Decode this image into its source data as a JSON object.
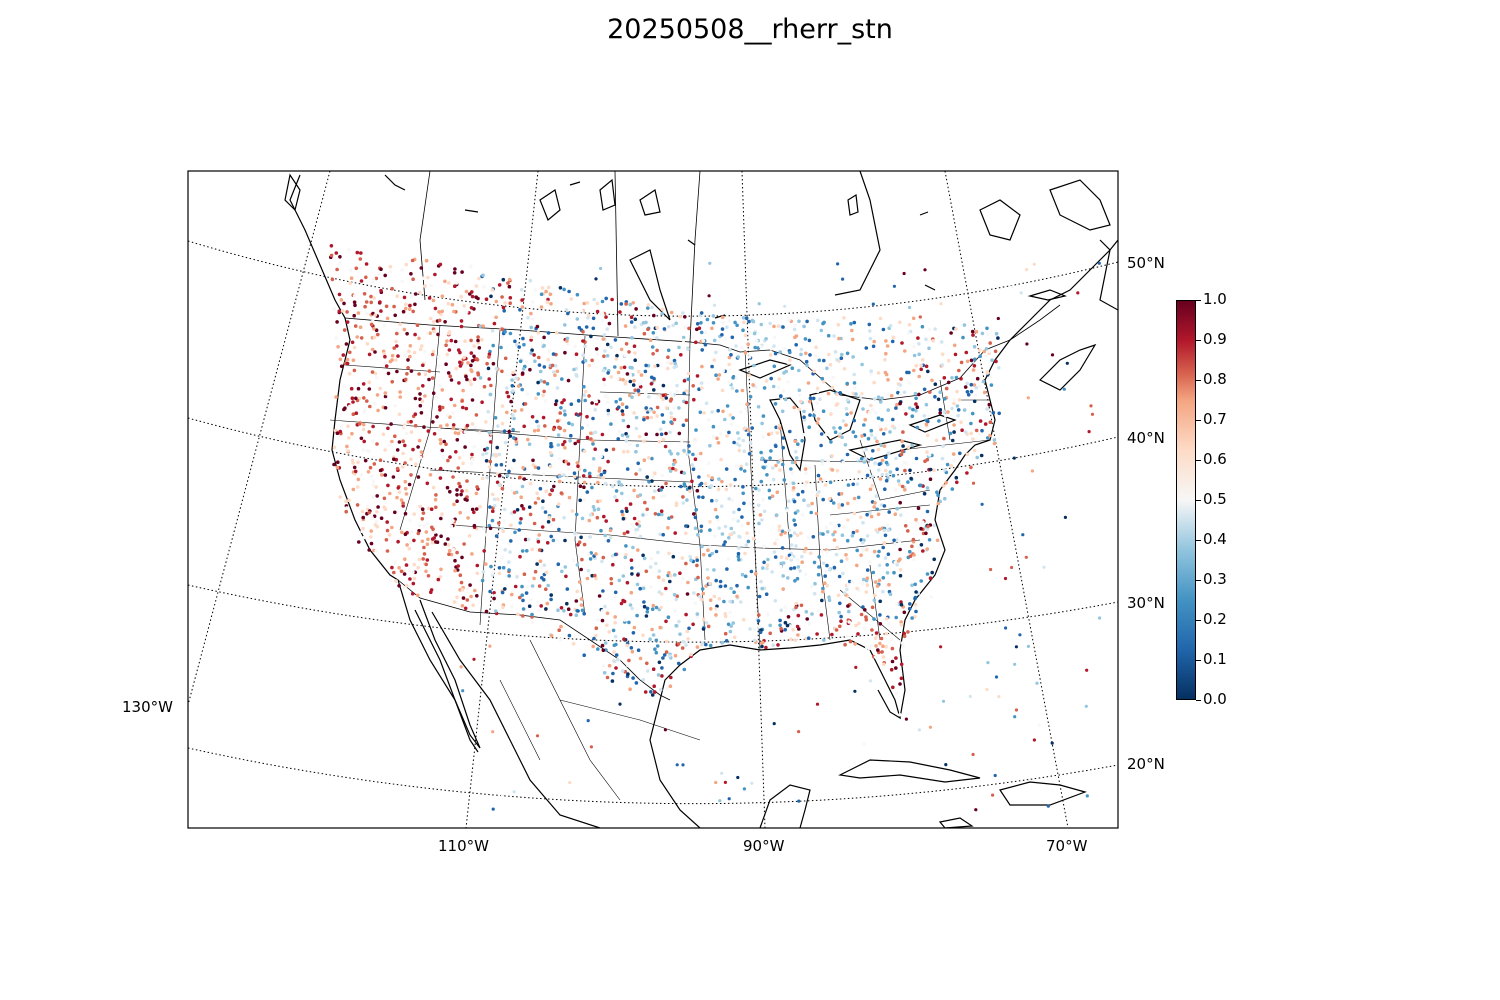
{
  "title": "20250508__rherr_stn",
  "lat_labels": [
    "50°N",
    "40°N",
    "30°N",
    "20°N"
  ],
  "lon_labels": [
    "110°W",
    "90°W",
    "70°W",
    "130°W"
  ],
  "colorbar": {
    "min": 0.0,
    "max": 1.0,
    "ticks": [
      "0.0",
      "0.1",
      "0.2",
      "0.3",
      "0.4",
      "0.5",
      "0.6",
      "0.7",
      "0.8",
      "0.9",
      "1.0"
    ],
    "colors": [
      "#053061",
      "#2166ac",
      "#4393c3",
      "#92c5de",
      "#d1e5f0",
      "#f7f7f7",
      "#fddbc7",
      "#f4a582",
      "#d6604d",
      "#b2182b",
      "#67001f"
    ]
  },
  "layers": [
    "coastlines",
    "country-borders",
    "state-borders",
    "graticule",
    "station-points"
  ]
}
